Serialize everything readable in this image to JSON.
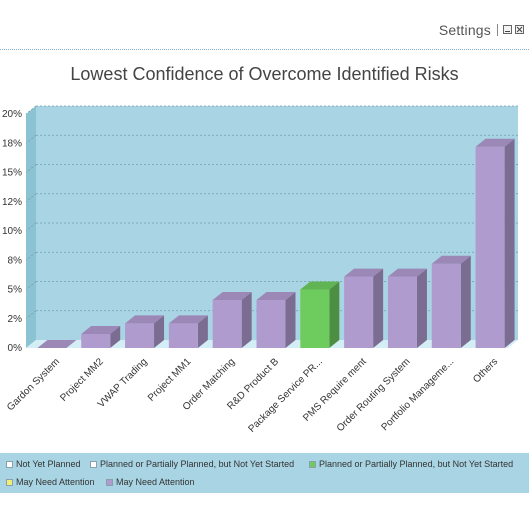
{
  "toolbar": {
    "settings_label": "Settings"
  },
  "chart_data": {
    "type": "bar",
    "title": "Lowest Confidence of Overcome Identified Risks",
    "xlabel": "",
    "ylabel": "",
    "ylim": [
      0,
      20
    ],
    "y_ticks": [
      0,
      2.5,
      5,
      7.5,
      10,
      12.5,
      15,
      17.5,
      20
    ],
    "y_tick_labels": [
      "0%",
      "2%",
      "5%",
      "8%",
      "10%",
      "12%",
      "15%",
      "18%",
      "20%"
    ],
    "grid": true,
    "categories": [
      "Gardon System",
      "Project MM2",
      "VWAP Trading",
      "Project MM1",
      "Order Matching",
      "R&D Product B",
      "Package Service PR...",
      "PMS Require ment",
      "Order Routing System",
      "Portfolio Manageme...",
      "Others"
    ],
    "values": [
      0,
      1.2,
      2.1,
      2.1,
      4.1,
      4.1,
      5.0,
      6.1,
      6.1,
      7.2,
      17.2
    ],
    "bar_series_index": [
      4,
      4,
      4,
      4,
      4,
      4,
      2,
      4,
      4,
      4,
      4
    ],
    "legend_position": "bottom",
    "legend": [
      {
        "label": "Not Yet Planned",
        "color": "#ffffff"
      },
      {
        "label": "Planned or Partially Planned, but Not Yet Started",
        "color": "#ffffff"
      },
      {
        "label": "Planned or Partially Planned, but Not Yet Started",
        "color": "#6ecc5e"
      },
      {
        "label": "May Need Attention",
        "color": "#f2ee74"
      },
      {
        "label": "May Need Attention",
        "color": "#b09bcf"
      }
    ],
    "colors": {
      "plot_background": "#a8d4e3",
      "floor": "#d4eef5",
      "left_wall": "#8cc3d2"
    }
  }
}
